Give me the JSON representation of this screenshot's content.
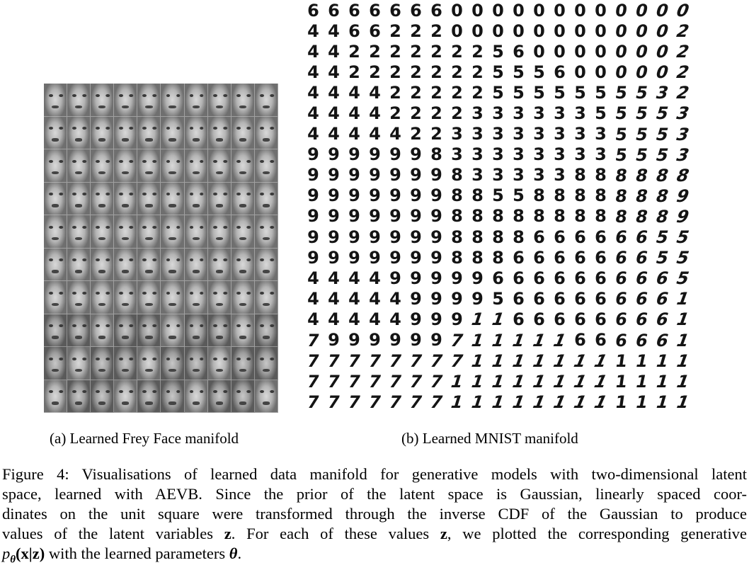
{
  "panel_a": {
    "caption": "(a) Learned Frey Face manifold",
    "grid_rows": 10,
    "grid_cols": 10
  },
  "panel_b": {
    "caption": "(b) Learned MNIST manifold",
    "digit_rows": [
      "6666666000000000000",
      "4466222000000000002",
      "4422222225600000002",
      "4422222225556000002",
      "4444222225555555532",
      "4444222233333355553",
      "4444422333333335553",
      "9999998333333335553",
      "9999999833333888888",
      "9999999885588888889",
      "9999999888888888889",
      "9999999888866666655",
      "9999999888666666655",
      "4444999996666666665",
      "4444499995666666661",
      "4444499911666666661",
      "7999999711111666661",
      "7777777711111111111",
      "7777777111111111111",
      "7777777111111111111"
    ]
  },
  "figure_caption": {
    "line1": "Figure 4: Visualisations of learned data manifold for generative models with two-dimensional latent",
    "line2": "space, learned with AEVB. Since the prior of the latent space is Gaussian, linearly spaced coor-",
    "line3": "dinates on the unit square were transformed through the inverse CDF of the Gaussian to produce",
    "line4_a": "values of the latent variables ",
    "line4_z1": "z",
    "line4_b": ". For each of these values ",
    "line4_z2": "z",
    "line4_c": ", we plotted the corresponding generative",
    "line5_p": "p",
    "line5_theta_sub": "θ",
    "line5_paren_x": "(x|z)",
    "line5_rest": " with the learned parameters ",
    "line5_theta": "θ",
    "line5_end": "."
  }
}
